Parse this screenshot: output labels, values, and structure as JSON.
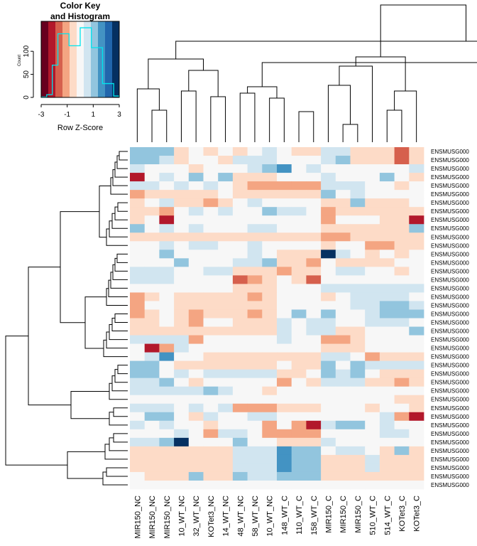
{
  "chart_data": {
    "type": "heatmap",
    "title": "",
    "color_key": {
      "title_line1": "Color Key",
      "title_line2": "and Histogram",
      "xlabel": "Row Z-Score",
      "ylabel": "Count",
      "x_ticks": [
        "-3",
        "-1",
        "1",
        "3"
      ],
      "x_range": [
        -3,
        3
      ],
      "y_ticks": [
        "0",
        "50",
        "100"
      ],
      "y_range": [
        0,
        165
      ],
      "histogram_bins": [
        1,
        6,
        70,
        138,
        138,
        112,
        112,
        151,
        151,
        108,
        108,
        30,
        30,
        3
      ],
      "histogram_color": "#00e5ee",
      "palette": [
        "#67001f",
        "#b2182b",
        "#d6604d",
        "#f4a582",
        "#fddbc7",
        "#f7f7f7",
        "#d1e5f0",
        "#92c5de",
        "#4393c3",
        "#2166ac",
        "#053061"
      ]
    },
    "columns": [
      "MIR150_NC",
      "MIR150_NC",
      "MIR150_NC",
      "10_WT_NC",
      "32_WT_NC",
      "KOTet3_NC",
      "14_WT_NC",
      "48_WT_NC",
      "58_WT_NC",
      "10_WT_NC",
      "148_WT_C",
      "110_WT_C",
      "158_WT_C",
      "MIR150_C",
      "MIR150_C",
      "MIR150_C",
      "510_WT_C",
      "514_WT_C",
      "KOTet3_C",
      "KOTet3_C"
    ],
    "row_label": "ENSMUSG000",
    "row_count": 40,
    "z_scores": [
      [
        0.9,
        0.9,
        0.9,
        -0.4,
        -0.2,
        -0.3,
        0.0,
        -0.4,
        0.0,
        0.3,
        -0.2,
        -0.3,
        -0.3,
        0.4,
        0.6,
        -0.7,
        -0.7,
        -0.5,
        -1.5,
        -0.8
      ],
      [
        0.9,
        0.9,
        0.5,
        -0.4,
        0.1,
        0.0,
        -0.5,
        0.4,
        0.5,
        0.3,
        -0.1,
        0.0,
        -0.1,
        0.4,
        0.9,
        -0.7,
        -0.7,
        -0.5,
        -1.5,
        -0.8
      ],
      [
        0.5,
        0.2,
        0.2,
        0.0,
        -0.5,
        0.0,
        0.2,
        0.0,
        0.5,
        1.0,
        1.5,
        0.2,
        0.5,
        0.0,
        0.2,
        0.2,
        -0.2,
        0.2,
        0.0,
        0.5
      ],
      [
        -2.0,
        0.0,
        0.5,
        0.2,
        0.9,
        0.0,
        0.9,
        -0.7,
        -0.7,
        -0.7,
        0.0,
        0.2,
        0.2,
        0.5,
        0.2,
        0.0,
        0.2,
        0.9,
        0.2,
        -0.3
      ],
      [
        0.5,
        0.3,
        0.2,
        0.5,
        0.2,
        0.3,
        0.0,
        -0.7,
        -1.1,
        -1.3,
        -1.3,
        -1.3,
        -1.3,
        0.3,
        0.3,
        0.3,
        0.0,
        0.0,
        -0.3,
        0.0
      ],
      [
        -1.3,
        -0.5,
        -0.5,
        -0.5,
        -0.5,
        -0.7,
        0.0,
        -0.5,
        -0.3,
        -0.7,
        -0.3,
        -0.3,
        -0.3,
        0.9,
        0.2,
        0.3,
        0.0,
        0.2,
        0.0,
        0.2
      ],
      [
        -0.8,
        0.0,
        0.5,
        -0.5,
        -0.5,
        -1.3,
        -0.7,
        0.0,
        0.5,
        0.0,
        0.0,
        0.0,
        0.0,
        -0.8,
        -0.5,
        0.9,
        -0.7,
        -0.3,
        -0.7,
        0.0
      ],
      [
        -0.7,
        -0.5,
        -1.3,
        0.0,
        0.5,
        0.2,
        0.5,
        0.2,
        0.0,
        0.9,
        0.5,
        0.5,
        0.0,
        -1.3,
        -0.5,
        -0.3,
        -0.3,
        -0.3,
        -0.3,
        -0.5
      ],
      [
        -0.5,
        0.0,
        -2.0,
        0.0,
        0.2,
        0.0,
        0.0,
        0.2,
        0.2,
        0.0,
        0.0,
        0.0,
        0.0,
        -1.3,
        0.2,
        0.2,
        0.2,
        -0.5,
        -0.7,
        -2.0
      ],
      [
        0.9,
        0.0,
        0.5,
        0.0,
        0.5,
        0.0,
        0.0,
        0.2,
        0.5,
        0.5,
        0.0,
        0.0,
        0.0,
        -0.5,
        -0.5,
        -0.5,
        -0.3,
        -0.3,
        -0.3,
        0.9
      ],
      [
        -0.7,
        -0.7,
        -0.7,
        -0.7,
        -0.7,
        -0.7,
        -0.7,
        -0.7,
        -0.7,
        -0.7,
        -0.5,
        -0.5,
        -0.5,
        -1.3,
        -1.3,
        -0.7,
        -0.3,
        -0.3,
        -0.3,
        -0.5
      ],
      [
        0.0,
        0.0,
        0.5,
        0.2,
        0.5,
        0.5,
        0.2,
        0.2,
        0.5,
        0.0,
        0.0,
        0.0,
        0.0,
        -0.5,
        0.0,
        0.0,
        -1.3,
        -1.3,
        -0.3,
        -0.3
      ],
      [
        0.0,
        0.0,
        0.9,
        0.2,
        0.0,
        0.2,
        0.0,
        0.2,
        0.5,
        0.2,
        -0.7,
        -0.7,
        -0.5,
        2.5,
        0.5,
        0.2,
        -0.3,
        0.0,
        -0.3,
        0.0
      ],
      [
        0.2,
        0.2,
        0.2,
        0.9,
        0.2,
        0.2,
        0.2,
        0.5,
        0.5,
        0.9,
        -0.7,
        -0.7,
        -1.3,
        0.0,
        -0.5,
        -0.5,
        -0.3,
        -0.3,
        0.0,
        0.0
      ],
      [
        0.5,
        0.5,
        0.5,
        0.2,
        0.2,
        0.5,
        0.5,
        -0.5,
        -0.5,
        -0.5,
        -1.3,
        -0.5,
        -0.5,
        0.0,
        0.5,
        0.5,
        0.0,
        0.0,
        -0.3,
        0.0
      ],
      [
        0.5,
        0.5,
        0.5,
        0.0,
        0.0,
        0.2,
        0.2,
        -1.9,
        -1.3,
        -0.7,
        0.0,
        -0.3,
        -1.9,
        0.0,
        0.0,
        0.0,
        0.0,
        0.0,
        0.0,
        0.0
      ],
      [
        0.0,
        0.0,
        0.0,
        0.2,
        0.0,
        0.0,
        0.0,
        -0.7,
        -0.7,
        -0.7,
        0.0,
        0.2,
        0.0,
        0.5,
        0.5,
        0.5,
        0.5,
        0.5,
        0.5,
        0.5
      ],
      [
        -1.3,
        -0.5,
        0.0,
        -0.5,
        -0.5,
        -0.5,
        -0.5,
        -0.5,
        -1.3,
        -0.5,
        0.2,
        0.2,
        0.0,
        -0.7,
        0.2,
        0.5,
        0.5,
        0.5,
        0.5,
        0.0
      ],
      [
        -1.3,
        0.0,
        0.0,
        -0.5,
        -0.7,
        -0.7,
        -0.7,
        -0.5,
        -0.5,
        -0.5,
        0.0,
        0.2,
        0.2,
        0.2,
        0.0,
        0.5,
        0.5,
        0.9,
        0.9,
        0.5
      ],
      [
        -1.3,
        -0.7,
        0.0,
        -0.3,
        -1.3,
        -0.5,
        -0.5,
        -0.7,
        -1.3,
        -0.5,
        0.2,
        0.9,
        0.2,
        1.3,
        0.2,
        0.2,
        0.5,
        0.9,
        0.9,
        0.9
      ],
      [
        -0.5,
        -0.5,
        0.0,
        -0.5,
        -1.3,
        0.0,
        0.0,
        -0.7,
        -0.5,
        -0.7,
        0.5,
        0.2,
        0.5,
        0.5,
        0.0,
        0.2,
        0.5,
        0.5,
        0.5,
        0.2
      ],
      [
        -0.7,
        -0.7,
        -0.7,
        -0.7,
        -0.7,
        -0.5,
        -0.5,
        -0.5,
        -0.5,
        -0.5,
        0.5,
        0.0,
        0.5,
        0.5,
        -0.7,
        -0.7,
        0.0,
        0.2,
        0.0,
        0.9
      ],
      [
        0.5,
        0.5,
        0.5,
        0.5,
        -1.3,
        0.2,
        0.2,
        0.2,
        0.2,
        0.2,
        0.5,
        0.2,
        0.2,
        -1.3,
        -1.3,
        -0.7,
        0.0,
        0.2,
        0.0,
        0.2
      ],
      [
        0.0,
        -2.0,
        -1.3,
        0.5,
        0.0,
        0.0,
        0.0,
        0.2,
        0.0,
        0.0,
        0.0,
        0.0,
        0.0,
        -0.7,
        -0.7,
        -0.7,
        0.0,
        0.0,
        0.0,
        0.0
      ],
      [
        0.0,
        0.5,
        1.5,
        0.0,
        0.0,
        -0.3,
        -0.5,
        -0.5,
        -0.3,
        -0.7,
        -0.3,
        -0.3,
        -0.3,
        0.5,
        0.5,
        0.2,
        -1.3,
        -0.3,
        -0.3,
        -0.7
      ],
      [
        0.9,
        0.9,
        0.0,
        -0.3,
        -0.5,
        -0.5,
        -0.5,
        -0.5,
        -0.3,
        -0.3,
        0.0,
        -0.3,
        -0.3,
        1.3,
        0.2,
        0.9,
        0.5,
        0.5,
        0.5,
        0.5
      ],
      [
        0.9,
        0.9,
        0.2,
        0.5,
        0.2,
        0.5,
        0.5,
        0.5,
        0.5,
        0.5,
        -0.5,
        -0.5,
        0.0,
        0.9,
        0.5,
        1.3,
        0.2,
        -0.7,
        -0.5,
        -0.7
      ],
      [
        0.5,
        0.5,
        0.9,
        0.2,
        -0.3,
        0.2,
        0.2,
        0.0,
        0.0,
        0.0,
        -1.3,
        0.0,
        -0.7,
        0.5,
        0.5,
        0.5,
        -0.3,
        -0.7,
        -1.3,
        -0.3
      ],
      [
        0.5,
        0.5,
        0.5,
        0.5,
        0.5,
        0.9,
        0.5,
        0.2,
        0.0,
        -0.5,
        0.2,
        0.0,
        0.0,
        0.0,
        0.0,
        0.0,
        0.2,
        0.0,
        0.0,
        0.2
      ],
      [
        0.2,
        0.2,
        0.2,
        0.0,
        0.0,
        0.2,
        0.0,
        0.2,
        0.2,
        0.2,
        0.2,
        0.0,
        0.0,
        0.2,
        0.2,
        0.2,
        0.2,
        0.0,
        -0.7,
        -0.7
      ],
      [
        0.5,
        0.5,
        0.5,
        0.0,
        0.5,
        0.0,
        0.5,
        -1.3,
        -1.3,
        -1.3,
        -0.5,
        -0.5,
        -0.3,
        0.2,
        0.2,
        0.2,
        -0.3,
        0.0,
        0.0,
        -0.7
      ],
      [
        0.0,
        1.3,
        1.3,
        0.0,
        -0.5,
        0.5,
        0.2,
        0.0,
        0.5,
        0.5,
        0.0,
        0.0,
        0.0,
        0.0,
        0.0,
        0.0,
        0.0,
        0.5,
        -1.3,
        -2.0
      ],
      [
        0.5,
        0.0,
        0.5,
        0.2,
        0.2,
        -0.3,
        0.0,
        0.2,
        0.0,
        -1.3,
        0.2,
        -1.3,
        -2.0,
        0.5,
        0.9,
        1.3,
        0.2,
        0.5,
        0.0,
        0.0
      ],
      [
        0.2,
        0.2,
        0.2,
        0.5,
        0.2,
        -1.3,
        0.5,
        0.5,
        0.2,
        -1.3,
        -1.3,
        -1.3,
        -1.3,
        0.2,
        0.2,
        0.2,
        0.2,
        0.5,
        0.5,
        0.0
      ],
      [
        0.5,
        0.5,
        1.3,
        2.5,
        0.2,
        0.2,
        0.2,
        0.9,
        0.2,
        0.2,
        -0.5,
        -0.5,
        -0.5,
        0.5,
        0.2,
        0.2,
        0.2,
        0.2,
        0.2,
        0.2
      ],
      [
        -0.7,
        -0.7,
        -0.7,
        -0.7,
        -0.7,
        -0.5,
        -0.5,
        0.5,
        0.5,
        0.5,
        1.5,
        1.3,
        1.3,
        0.2,
        0.5,
        0.5,
        0.2,
        -0.3,
        0.9,
        -0.7
      ],
      [
        -0.7,
        -0.7,
        -0.7,
        -0.5,
        -0.5,
        -0.5,
        -0.5,
        0.5,
        0.5,
        0.5,
        1.5,
        1.3,
        1.3,
        -0.3,
        -0.3,
        -0.3,
        0.5,
        -0.5,
        -0.3,
        -0.3
      ],
      [
        -0.3,
        -0.3,
        -0.3,
        -0.3,
        -0.3,
        -0.3,
        -0.3,
        0.5,
        0.5,
        0.5,
        1.5,
        1.3,
        1.3,
        -0.3,
        -0.3,
        -0.3,
        0.5,
        -0.3,
        -0.3,
        -0.3
      ],
      [
        0.0,
        -0.3,
        -0.3,
        -0.3,
        0.9,
        -0.3,
        -0.3,
        1.3,
        0.5,
        0.5,
        1.3,
        1.3,
        1.3,
        -0.3,
        -0.3,
        -0.3,
        -0.3,
        -0.3,
        -0.3,
        -0.3
      ],
      [
        0.0,
        0.0,
        0.0,
        0.0,
        0.0,
        0.0,
        0.0,
        0.0,
        0.0,
        0.0,
        0.0,
        0.0,
        0.0,
        0.0,
        0.0,
        0.0,
        0.0,
        0.0,
        0.0,
        0.0
      ]
    ]
  }
}
